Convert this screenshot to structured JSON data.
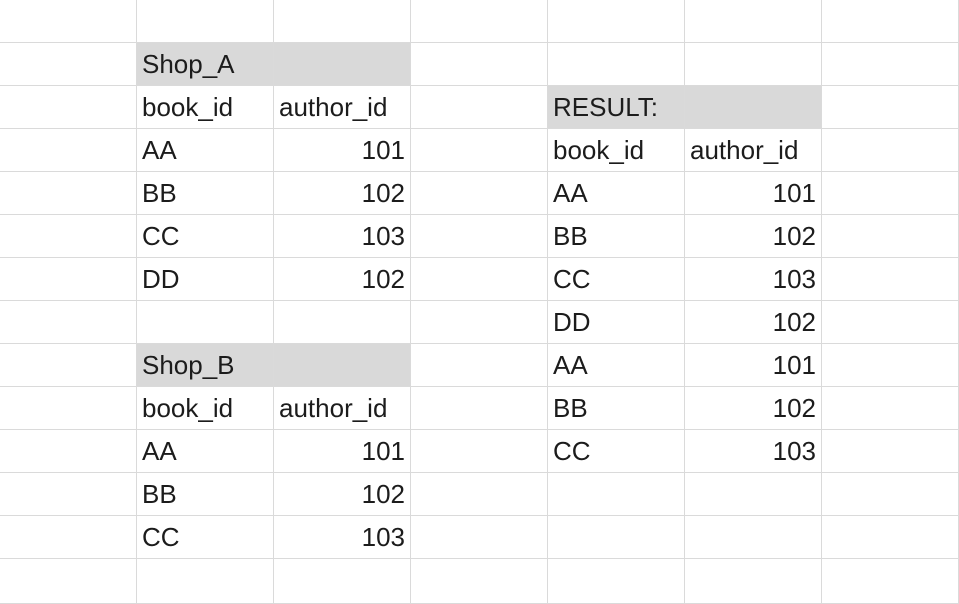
{
  "header_fill": "#d9d9d9",
  "gridline_color": "#dadada",
  "text_color": "#1c1c1c",
  "blocks": [
    {
      "name": "shop-a",
      "title": "Shop_A",
      "columns": [
        "book_id",
        "author_id"
      ],
      "rows": [
        [
          "AA",
          "101"
        ],
        [
          "BB",
          "102"
        ],
        [
          "CC",
          "103"
        ],
        [
          "DD",
          "102"
        ]
      ]
    },
    {
      "name": "shop-b",
      "title": "Shop_B",
      "columns": [
        "book_id",
        "author_id"
      ],
      "rows": [
        [
          "AA",
          "101"
        ],
        [
          "BB",
          "102"
        ],
        [
          "CC",
          "103"
        ]
      ]
    },
    {
      "name": "result",
      "title": "RESULT:",
      "columns": [
        "book_id",
        "author_id"
      ],
      "rows": [
        [
          "AA",
          "101"
        ],
        [
          "BB",
          "102"
        ],
        [
          "CC",
          "103"
        ],
        [
          "DD",
          "102"
        ],
        [
          "AA",
          "101"
        ],
        [
          "BB",
          "102"
        ],
        [
          "CC",
          "103"
        ]
      ]
    }
  ]
}
